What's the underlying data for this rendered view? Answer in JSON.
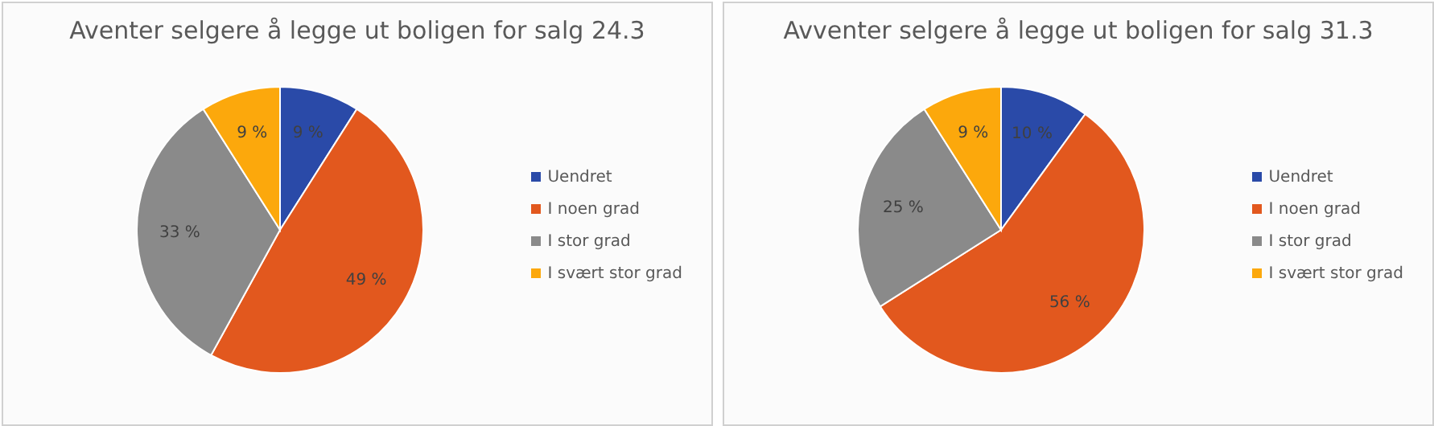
{
  "chart_data": [
    {
      "type": "pie",
      "title": "Aventer selgere å legge ut boligen for salg 24.3",
      "categories": [
        "Uendret",
        "I noen grad",
        "I stor grad",
        "I svært stor grad"
      ],
      "values": [
        9,
        49,
        33,
        9
      ],
      "value_labels": [
        "9 %",
        "49 %",
        "33 %",
        "9 %"
      ],
      "colors": [
        "#2a4aa8",
        "#e2581e",
        "#8a8a8a",
        "#fca80c"
      ],
      "legend": "right"
    },
    {
      "type": "pie",
      "title": "Avventer selgere å legge ut boligen for salg 31.3",
      "categories": [
        "Uendret",
        "I noen grad",
        "I stor grad",
        "I svært stor grad"
      ],
      "values": [
        10,
        56,
        25,
        9
      ],
      "value_labels": [
        "10 %",
        "56 %",
        "25 %",
        "9 %"
      ],
      "colors": [
        "#2a4aa8",
        "#e2581e",
        "#8a8a8a",
        "#fca80c"
      ],
      "legend": "right"
    }
  ]
}
